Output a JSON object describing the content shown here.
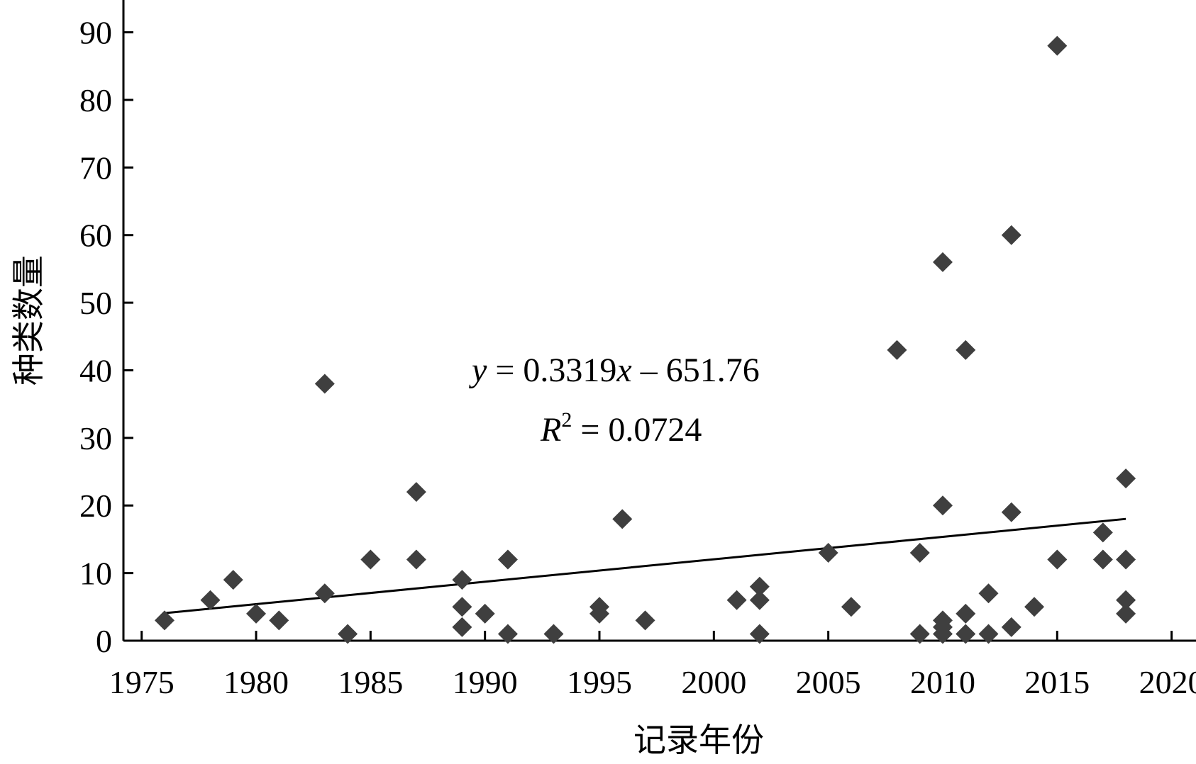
{
  "chart_data": {
    "type": "scatter",
    "xlabel": "记录年份",
    "ylabel": "种类数量",
    "xlim": [
      1975,
      2021
    ],
    "ylim": [
      0,
      95
    ],
    "xticks": [
      1975,
      1980,
      1985,
      1990,
      1995,
      2000,
      2005,
      2010,
      2015,
      2020
    ],
    "yticks": [
      0,
      10,
      20,
      30,
      40,
      50,
      60,
      70,
      80,
      90
    ],
    "grid": false,
    "marker": "diamond",
    "marker_color": "#3f3f3f",
    "points": [
      [
        1976,
        3
      ],
      [
        1978,
        6
      ],
      [
        1979,
        9
      ],
      [
        1980,
        4
      ],
      [
        1981,
        3
      ],
      [
        1983,
        38
      ],
      [
        1983,
        7
      ],
      [
        1984,
        1
      ],
      [
        1985,
        12
      ],
      [
        1987,
        22
      ],
      [
        1987,
        12
      ],
      [
        1989,
        9
      ],
      [
        1989,
        5
      ],
      [
        1989,
        2
      ],
      [
        1990,
        4
      ],
      [
        1991,
        12
      ],
      [
        1991,
        1
      ],
      [
        1993,
        1
      ],
      [
        1995,
        5
      ],
      [
        1995,
        4
      ],
      [
        1996,
        18
      ],
      [
        1997,
        3
      ],
      [
        2001,
        6
      ],
      [
        2002,
        8
      ],
      [
        2002,
        6
      ],
      [
        2002,
        1
      ],
      [
        2005,
        13
      ],
      [
        2006,
        5
      ],
      [
        2008,
        43
      ],
      [
        2009,
        13
      ],
      [
        2009,
        1
      ],
      [
        2010,
        56
      ],
      [
        2010,
        20
      ],
      [
        2010,
        3
      ],
      [
        2010,
        2
      ],
      [
        2010,
        1
      ],
      [
        2011,
        43
      ],
      [
        2011,
        4
      ],
      [
        2011,
        1
      ],
      [
        2012,
        7
      ],
      [
        2012,
        1
      ],
      [
        2013,
        60
      ],
      [
        2013,
        19
      ],
      [
        2013,
        2
      ],
      [
        2014,
        5
      ],
      [
        2015,
        88
      ],
      [
        2015,
        12
      ],
      [
        2017,
        16
      ],
      [
        2017,
        12
      ],
      [
        2018,
        24
      ],
      [
        2018,
        12
      ],
      [
        2018,
        6
      ],
      [
        2018,
        4
      ]
    ],
    "trendline": {
      "slope": 0.3319,
      "intercept": -651.76,
      "x_range": [
        1976,
        2018
      ],
      "color": "#000000"
    },
    "annotations": {
      "equation_y": "y",
      "equation_rest": " = 0.3319",
      "equation_x": "x",
      "equation_tail": " – 651.76",
      "r2_R": "R",
      "r2_sup": "2",
      "r2_rest": " = 0.0724"
    }
  }
}
